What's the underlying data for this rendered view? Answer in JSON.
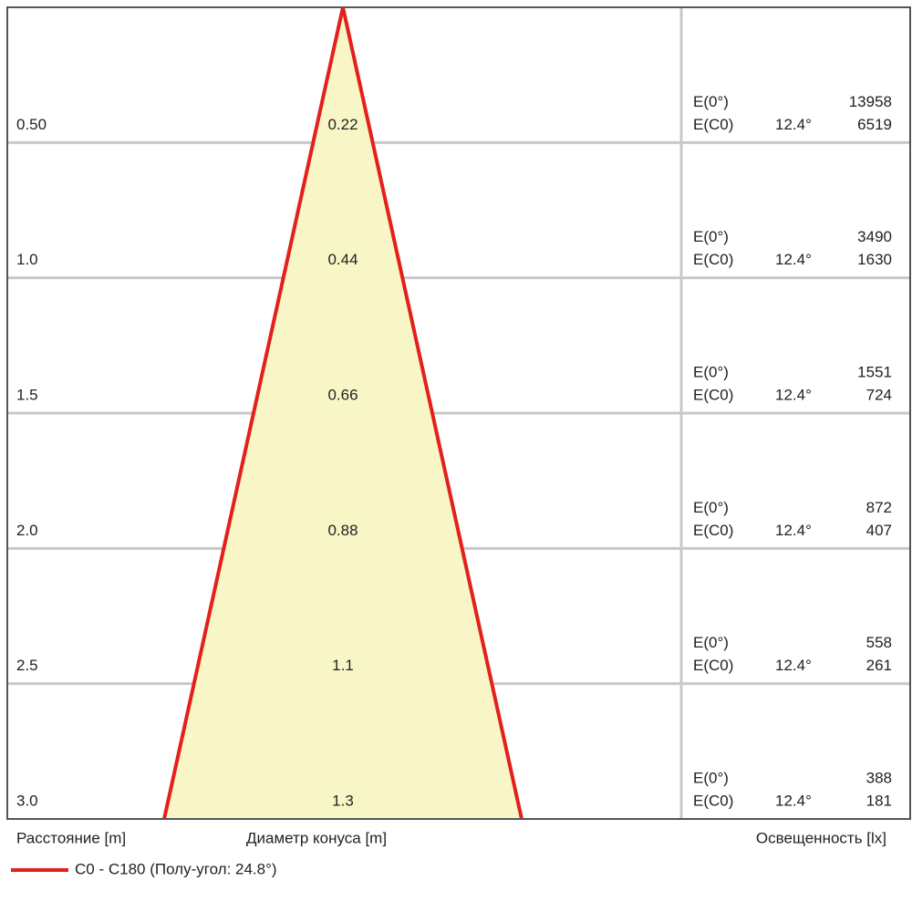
{
  "rows": [
    {
      "distance": "0.50",
      "diameter": "0.22",
      "e0_label": "E(0°)",
      "e0_value": "13958",
      "ec0_label": "E(C0)",
      "angle": "12.4°",
      "ec0_value": "6519"
    },
    {
      "distance": "1.0",
      "diameter": "0.44",
      "e0_label": "E(0°)",
      "e0_value": "3490",
      "ec0_label": "E(C0)",
      "angle": "12.4°",
      "ec0_value": "1630"
    },
    {
      "distance": "1.5",
      "diameter": "0.66",
      "e0_label": "E(0°)",
      "e0_value": "1551",
      "ec0_label": "E(C0)",
      "angle": "12.4°",
      "ec0_value": "724"
    },
    {
      "distance": "2.0",
      "diameter": "0.88",
      "e0_label": "E(0°)",
      "e0_value": "872",
      "ec0_label": "E(C0)",
      "angle": "12.4°",
      "ec0_value": "407"
    },
    {
      "distance": "2.5",
      "diameter": "1.1",
      "e0_label": "E(0°)",
      "e0_value": "558",
      "ec0_label": "E(C0)",
      "angle": "12.4°",
      "ec0_value": "261"
    },
    {
      "distance": "3.0",
      "diameter": "1.3",
      "e0_label": "E(0°)",
      "e0_value": "388",
      "ec0_label": "E(C0)",
      "angle": "12.4°",
      "ec0_value": "181"
    }
  ],
  "footer": {
    "distance_label": "Расстояние [m]",
    "diameter_label": "Диаметр конуса [m]",
    "illuminance_label": "Освещенность [lx]"
  },
  "legend": {
    "label": "C0 - C180 (Полу-угол: 24.8°)"
  }
}
